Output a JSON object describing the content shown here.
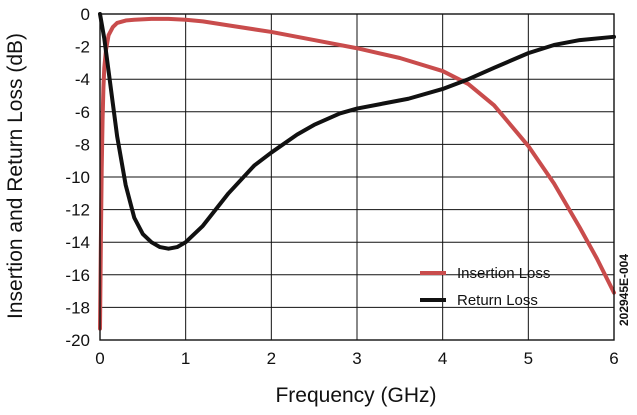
{
  "chart_data": {
    "type": "line",
    "title": "",
    "xlabel": "Frequency (GHz)",
    "ylabel": "Insertion and Return Loss (dB)",
    "figure_id": "202945E-004",
    "xlim": [
      0,
      6
    ],
    "ylim": [
      -20,
      0
    ],
    "xticks": [
      0,
      1,
      2,
      3,
      4,
      5,
      6
    ],
    "yticks": [
      0,
      -2,
      -4,
      -6,
      -8,
      -10,
      -12,
      -14,
      -16,
      -18,
      -20
    ],
    "grid": true,
    "legend_position": "bottom-right",
    "series": [
      {
        "name": "Insertion Loss",
        "color": "#c94c4c",
        "x": [
          0.0,
          0.01,
          0.02,
          0.03,
          0.04,
          0.05,
          0.07,
          0.1,
          0.15,
          0.2,
          0.3,
          0.4,
          0.6,
          0.8,
          1.0,
          1.2,
          1.5,
          2.0,
          2.5,
          3.0,
          3.5,
          4.0,
          4.3,
          4.6,
          5.0,
          5.3,
          5.6,
          5.8,
          6.0
        ],
        "y": [
          -19.3,
          -14.0,
          -9.5,
          -6.5,
          -4.5,
          -3.3,
          -2.2,
          -1.3,
          -0.8,
          -0.55,
          -0.4,
          -0.35,
          -0.3,
          -0.3,
          -0.35,
          -0.45,
          -0.7,
          -1.1,
          -1.6,
          -2.1,
          -2.7,
          -3.5,
          -4.3,
          -5.6,
          -8.1,
          -10.4,
          -13.1,
          -15.0,
          -17.1
        ]
      },
      {
        "name": "Return Loss",
        "color": "#111111",
        "x": [
          0.0,
          0.05,
          0.1,
          0.15,
          0.2,
          0.3,
          0.4,
          0.5,
          0.6,
          0.7,
          0.8,
          0.9,
          1.0,
          1.2,
          1.5,
          1.8,
          2.0,
          2.3,
          2.5,
          2.8,
          3.0,
          3.3,
          3.6,
          4.0,
          4.3,
          4.6,
          5.0,
          5.3,
          5.6,
          6.0
        ],
        "y": [
          0.0,
          -1.5,
          -3.5,
          -5.5,
          -7.5,
          -10.5,
          -12.5,
          -13.5,
          -14.0,
          -14.3,
          -14.4,
          -14.3,
          -14.0,
          -13.0,
          -11.0,
          -9.3,
          -8.5,
          -7.4,
          -6.8,
          -6.1,
          -5.8,
          -5.5,
          -5.2,
          -4.6,
          -4.0,
          -3.3,
          -2.4,
          -1.9,
          -1.6,
          -1.4
        ]
      }
    ]
  }
}
